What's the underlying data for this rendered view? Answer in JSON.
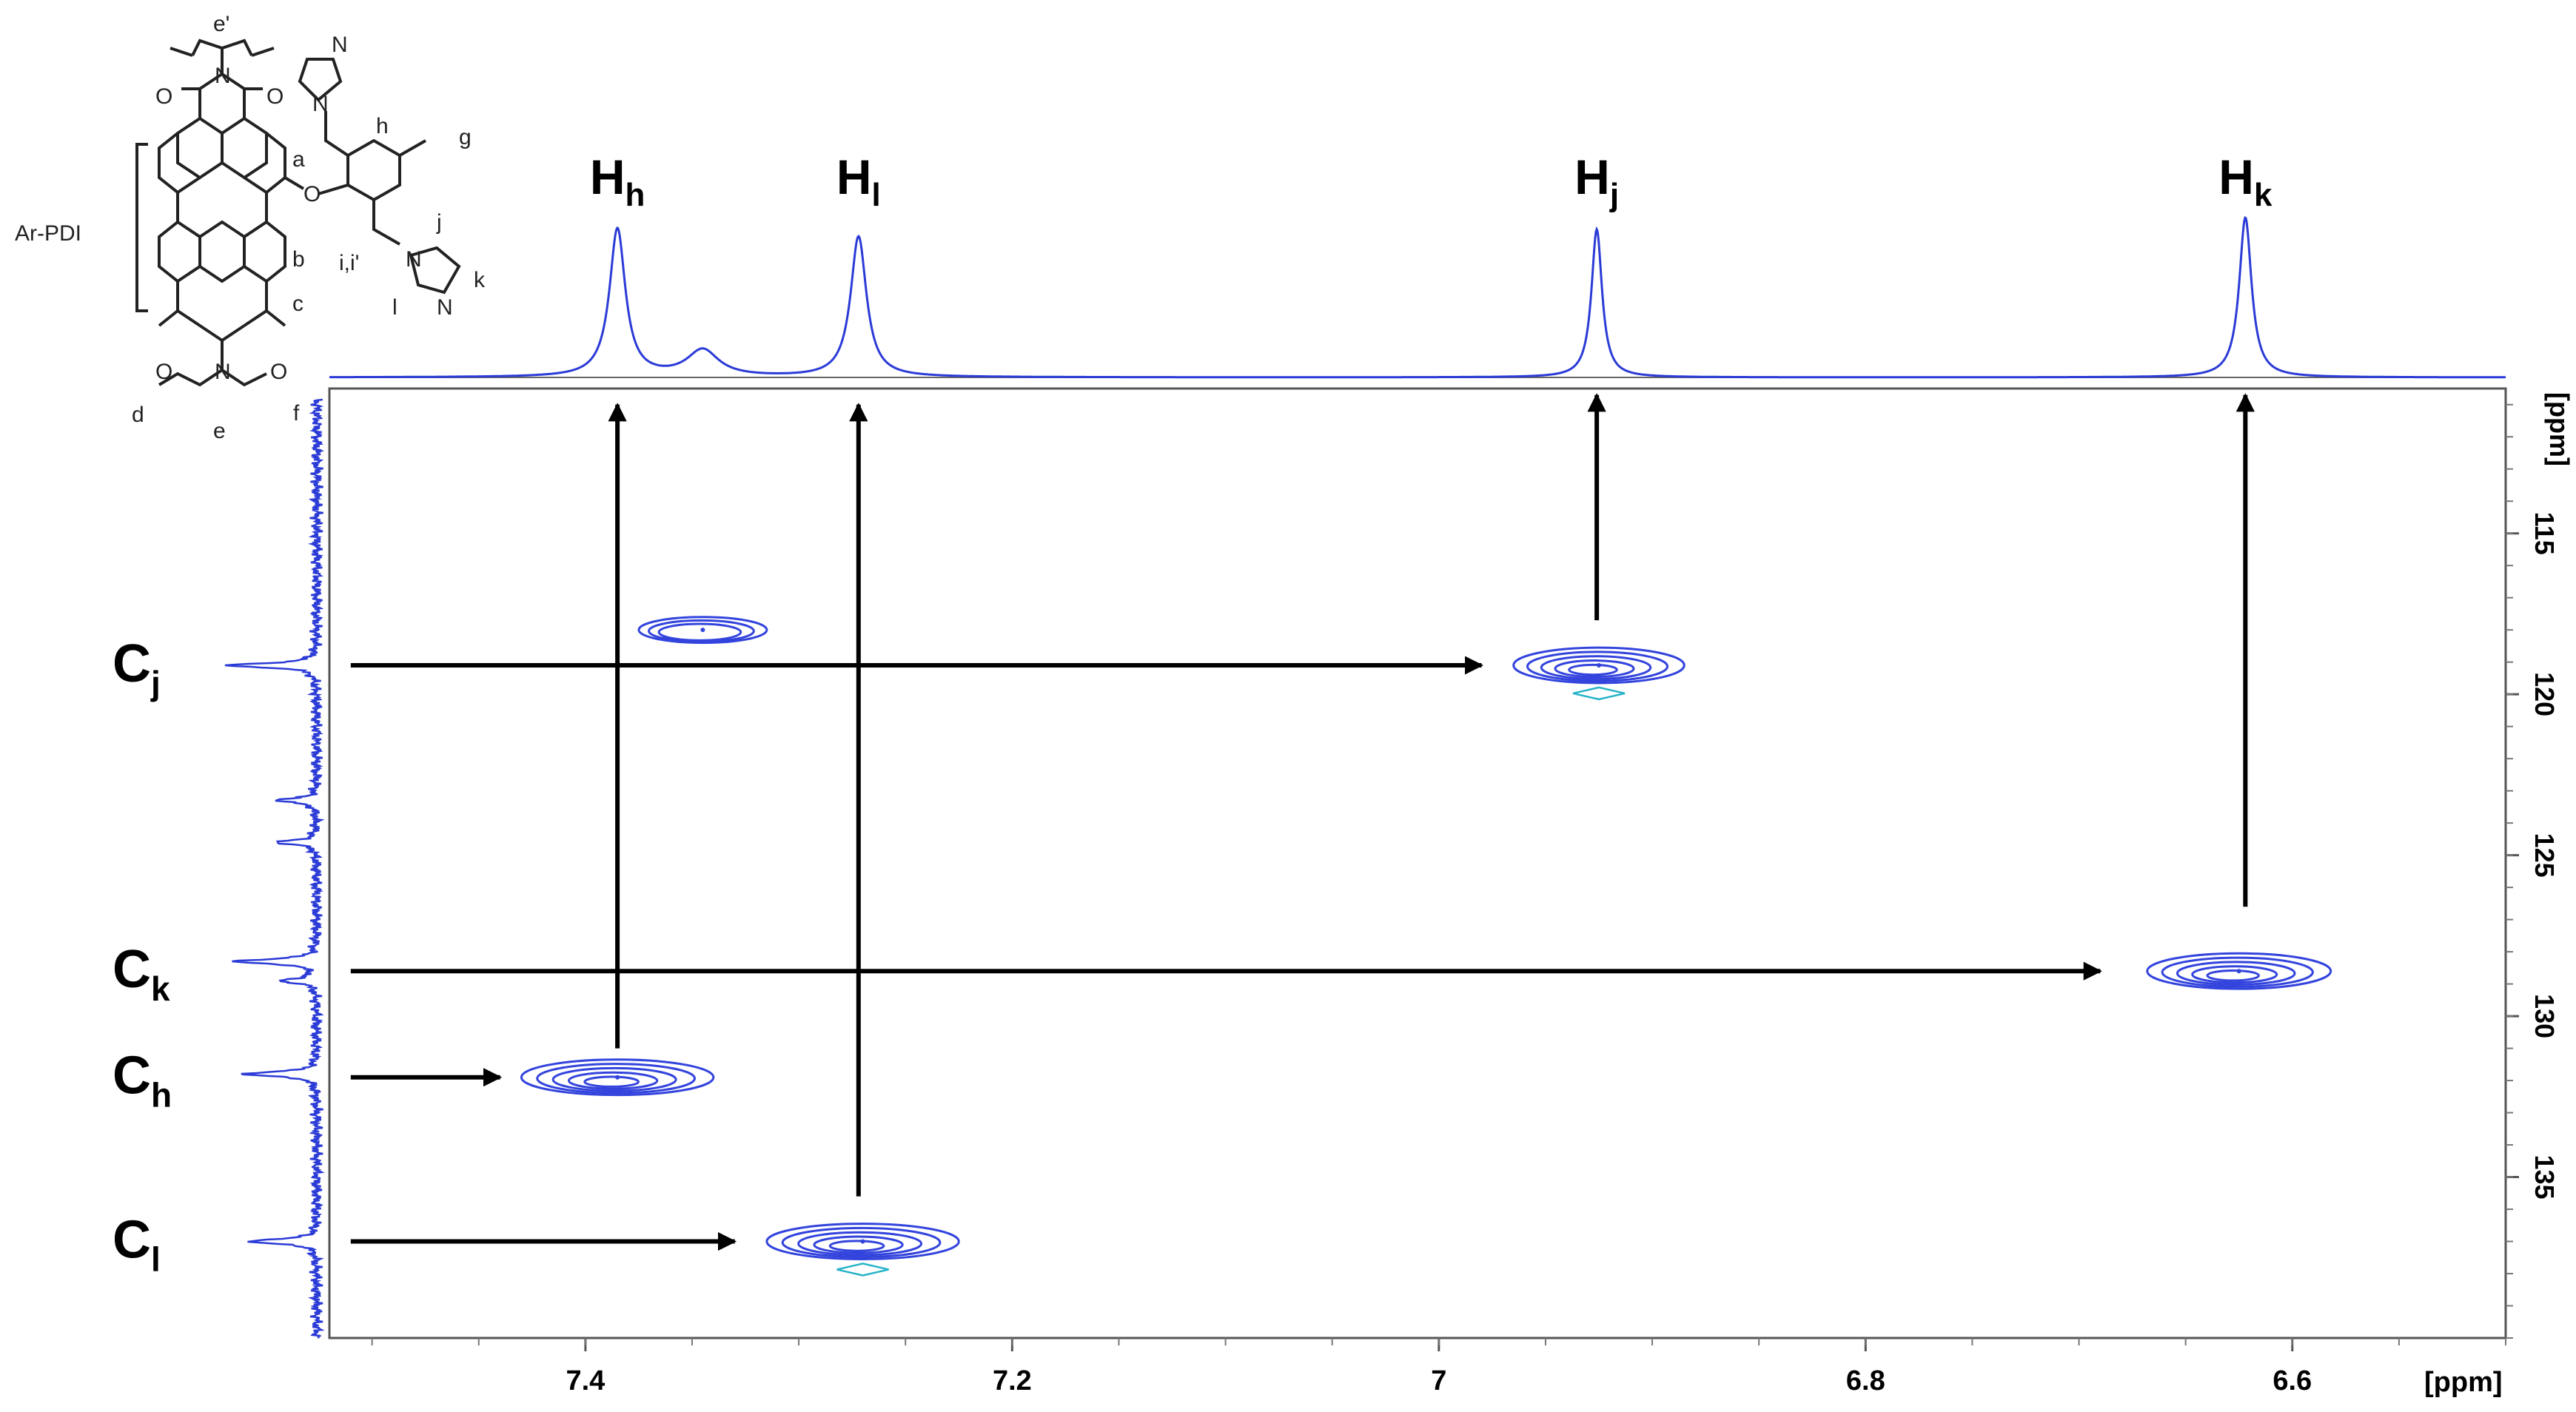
{
  "chart_data": {
    "type": "heatmap",
    "subtype": "2D NMR HSQC correlation spectrum",
    "x_axis": {
      "label": "[ppm]",
      "range": [
        7.52,
        6.5
      ],
      "reversed": true,
      "ticks": [
        7.4,
        7.2,
        7.0,
        6.8,
        6.6
      ]
    },
    "y_axis": {
      "label": "[ppm]",
      "range": [
        110.5,
        140
      ],
      "reversed": true,
      "position": "right",
      "ticks": [
        115,
        120,
        125,
        130,
        135
      ]
    },
    "cross_peaks": [
      {
        "name": "j",
        "h": 6.925,
        "c": 119.1,
        "rx": 0.04,
        "ry": 0.55
      },
      {
        "name": "k",
        "h": 6.625,
        "c": 128.6,
        "rx": 0.043,
        "ry": 0.55
      },
      {
        "name": "h",
        "h": 7.385,
        "c": 131.9,
        "rx": 0.045,
        "ry": 0.55
      },
      {
        "name": "l",
        "h": 7.27,
        "c": 137.0,
        "rx": 0.045,
        "ry": 0.55
      },
      {
        "name": "extra",
        "h": 7.345,
        "c": 118.0,
        "rx": 0.03,
        "ry": 0.4
      }
    ],
    "proton_projection": [
      {
        "ppm": 7.385,
        "height": 1.0,
        "width": 0.0045
      },
      {
        "ppm": 7.345,
        "height": 0.18,
        "width": 0.009
      },
      {
        "ppm": 7.272,
        "height": 0.95,
        "width": 0.0045
      },
      {
        "ppm": 6.926,
        "height": 1.0,
        "width": 0.003
      },
      {
        "ppm": 6.622,
        "height": 1.08,
        "width": 0.0035
      }
    ],
    "carbon_projection": [
      {
        "ppm": 119.1,
        "height": 1.0
      },
      {
        "ppm": 123.3,
        "height": 0.45
      },
      {
        "ppm": 124.6,
        "height": 0.45
      },
      {
        "ppm": 128.3,
        "height": 0.95
      },
      {
        "ppm": 128.9,
        "height": 0.4
      },
      {
        "ppm": 131.8,
        "height": 0.85
      },
      {
        "ppm": 137.0,
        "height": 0.8
      }
    ],
    "proton_labels": [
      {
        "base": "H",
        "sub": "h",
        "ppm": 7.385
      },
      {
        "base": "H",
        "sub": "l",
        "ppm": 7.272
      },
      {
        "base": "H",
        "sub": "j",
        "ppm": 6.926
      },
      {
        "base": "H",
        "sub": "k",
        "ppm": 6.622
      }
    ],
    "carbon_labels": [
      {
        "base": "C",
        "sub": "j",
        "ppm": 119.1
      },
      {
        "base": "C",
        "sub": "k",
        "ppm": 128.6
      },
      {
        "base": "C",
        "sub": "h",
        "ppm": 131.9
      },
      {
        "base": "C",
        "sub": "l",
        "ppm": 137.0
      }
    ],
    "vertical_arrows": [
      {
        "h": 7.385,
        "from_c": 131.0,
        "to_c": 111.0
      },
      {
        "h": 7.272,
        "from_c": 135.6,
        "to_c": 111.0
      },
      {
        "h": 6.926,
        "from_c": 117.7,
        "to_c": 110.7
      },
      {
        "h": 6.622,
        "from_c": 126.6,
        "to_c": 110.7
      }
    ],
    "horizontal_arrows": [
      {
        "c": 119.1,
        "from_h": 7.51,
        "to_h": 6.98
      },
      {
        "c": 128.6,
        "from_h": 7.51,
        "to_h": 6.69
      },
      {
        "c": 131.9,
        "from_h": 7.51,
        "to_h": 7.44
      },
      {
        "c": 137.0,
        "from_h": 7.51,
        "to_h": 7.33
      }
    ],
    "molecule": {
      "group_label": "Ar-PDI",
      "atom_labels": [
        "O",
        "N",
        "O",
        "O",
        "O",
        "N",
        "O",
        "N",
        "N",
        "N",
        "N"
      ],
      "proton_letters": [
        "a",
        "b",
        "c",
        "d",
        "e",
        "e'",
        "f",
        "g",
        "h",
        "i,i'",
        "j",
        "k",
        "l"
      ]
    }
  }
}
